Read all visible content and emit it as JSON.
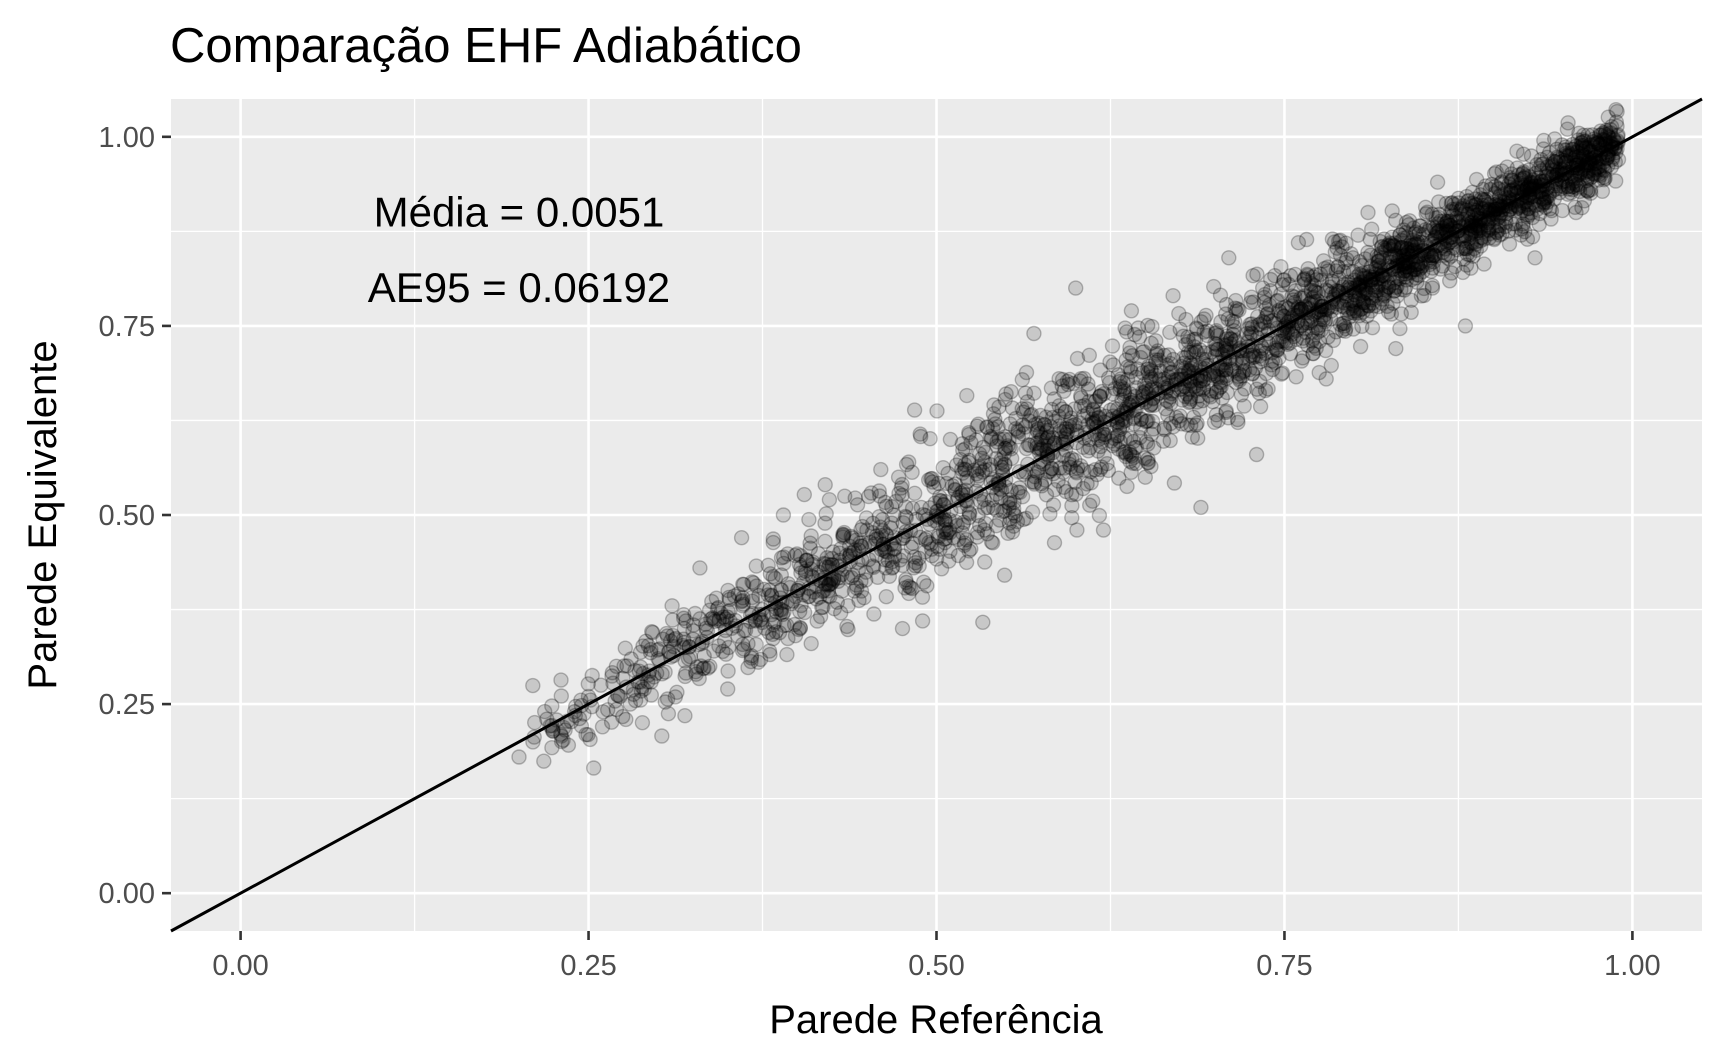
{
  "chart_data": {
    "type": "scatter",
    "title": "Comparação EHF Adiabático",
    "xlabel": "Parede Referência",
    "ylabel": "Parede Equivalente",
    "xlim": [
      -0.05,
      1.05
    ],
    "ylim": [
      -0.05,
      1.05
    ],
    "x_ticks": [
      0.0,
      0.25,
      0.5,
      0.75,
      1.0
    ],
    "y_ticks": [
      0.0,
      0.25,
      0.5,
      0.75,
      1.0
    ],
    "x_tick_labels": [
      "0.00",
      "0.25",
      "0.50",
      "0.75",
      "1.00"
    ],
    "y_tick_labels": [
      "0.00",
      "0.25",
      "0.50",
      "0.75",
      "1.00"
    ],
    "grid": true,
    "point_color": "#000000",
    "point_alpha": 0.15,
    "reference_line": {
      "slope": 1,
      "intercept": 0
    },
    "annotations": [
      {
        "text": "Média = 0.0051",
        "x": 0.2,
        "y": 0.9
      },
      {
        "text": "AE95 = 0.06192",
        "x": 0.2,
        "y": 0.8
      }
    ],
    "points": [
      [
        0.2,
        0.18
      ],
      [
        0.21,
        0.2
      ],
      [
        0.22,
        0.23
      ],
      [
        0.23,
        0.21
      ],
      [
        0.24,
        0.24
      ],
      [
        0.25,
        0.26
      ],
      [
        0.26,
        0.22
      ],
      [
        0.27,
        0.3
      ],
      [
        0.28,
        0.25
      ],
      [
        0.29,
        0.27
      ],
      [
        0.3,
        0.31
      ],
      [
        0.31,
        0.38
      ],
      [
        0.32,
        0.36
      ],
      [
        0.33,
        0.43
      ],
      [
        0.34,
        0.32
      ],
      [
        0.35,
        0.27
      ],
      [
        0.36,
        0.47
      ],
      [
        0.37,
        0.36
      ],
      [
        0.38,
        0.32
      ],
      [
        0.39,
        0.5
      ],
      [
        0.4,
        0.4
      ],
      [
        0.41,
        0.33
      ],
      [
        0.42,
        0.54
      ],
      [
        0.43,
        0.44
      ],
      [
        0.44,
        0.42
      ],
      [
        0.45,
        0.48
      ],
      [
        0.46,
        0.56
      ],
      [
        0.47,
        0.47
      ],
      [
        0.48,
        0.57
      ],
      [
        0.49,
        0.36
      ],
      [
        0.5,
        0.5
      ],
      [
        0.51,
        0.6
      ],
      [
        0.52,
        0.46
      ],
      [
        0.53,
        0.62
      ],
      [
        0.54,
        0.52
      ],
      [
        0.55,
        0.66
      ],
      [
        0.56,
        0.53
      ],
      [
        0.57,
        0.74
      ],
      [
        0.58,
        0.58
      ],
      [
        0.6,
        0.8
      ],
      [
        0.61,
        0.6
      ],
      [
        0.62,
        0.48
      ],
      [
        0.63,
        0.64
      ],
      [
        0.64,
        0.77
      ],
      [
        0.65,
        0.55
      ],
      [
        0.66,
        0.68
      ],
      [
        0.67,
        0.79
      ],
      [
        0.68,
        0.66
      ],
      [
        0.69,
        0.51
      ],
      [
        0.7,
        0.71
      ],
      [
        0.71,
        0.84
      ],
      [
        0.72,
        0.7
      ],
      [
        0.73,
        0.58
      ],
      [
        0.75,
        0.75
      ],
      [
        0.76,
        0.86
      ],
      [
        0.77,
        0.73
      ],
      [
        0.78,
        0.68
      ],
      [
        0.8,
        0.8
      ],
      [
        0.81,
        0.9
      ],
      [
        0.82,
        0.78
      ],
      [
        0.83,
        0.72
      ],
      [
        0.85,
        0.85
      ],
      [
        0.86,
        0.94
      ],
      [
        0.87,
        0.82
      ],
      [
        0.88,
        0.75
      ],
      [
        0.9,
        0.9
      ],
      [
        0.91,
        0.96
      ],
      [
        0.92,
        0.87
      ],
      [
        0.93,
        0.84
      ],
      [
        0.95,
        0.95
      ],
      [
        0.96,
        0.98
      ],
      [
        0.97,
        0.93
      ],
      [
        0.98,
        0.99
      ],
      [
        0.99,
        0.97
      ]
    ],
    "n_points_approx": 5000
  }
}
